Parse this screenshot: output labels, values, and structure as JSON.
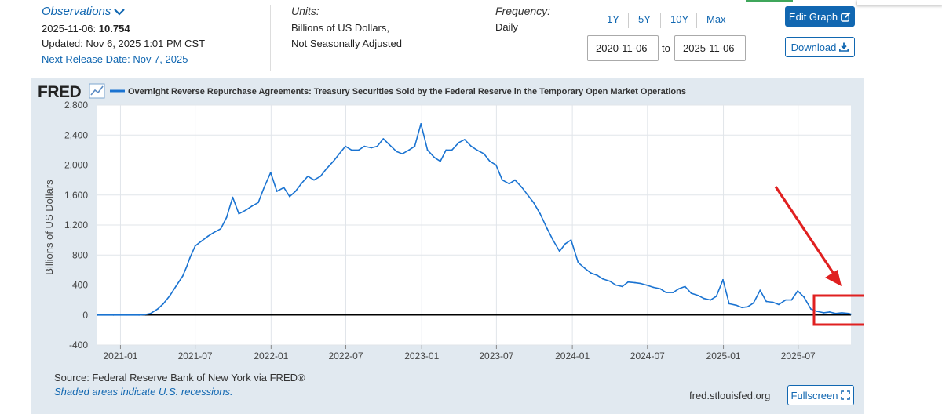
{
  "header": {
    "observations_label": "Observations",
    "obs_date": "2025-11-06:",
    "obs_value": "10.754",
    "updated": "Updated: Nov 6, 2025 1:01 PM CST",
    "next_release": "Next Release Date: Nov 7, 2025",
    "units_label": "Units:",
    "units_line1": "Billions of US Dollars,",
    "units_line2": "Not Seasonally Adjusted",
    "frequency_label": "Frequency:",
    "frequency_value": "Daily",
    "ranges": [
      "1Y",
      "5Y",
      "10Y",
      "Max"
    ],
    "start_date": "2020-11-06",
    "to_label": "to",
    "end_date": "2025-11-06",
    "edit_graph_label": "Edit Graph",
    "download_label": "Download"
  },
  "footer": {
    "source": "Source: Federal Reserve Bank of New York via FRED®",
    "recessions": "Shaded areas indicate U.S. recessions.",
    "site": "fred.stlouisfed.org",
    "fullscreen_label": "Fullscreen"
  },
  "colors": {
    "series": "#1a73d1",
    "link": "#1167b1",
    "panel": "#e1e9f0",
    "annotation": "#e02020"
  },
  "icons": {
    "observations": "chevron-down-icon",
    "edit": "pencil-square-icon",
    "download": "download-arrow-icon",
    "fullscreen": "expand-icon",
    "fred_logo_graph": "line-graph-icon"
  },
  "chart_data": {
    "type": "line",
    "brand": "FRED",
    "title": "Overnight Reverse Repurchase Agreements: Treasury Securities Sold by the Federal Reserve in the Temporary Open Market Operations",
    "legend_placement": "top-left",
    "ylabel": "Billions of US Dollars",
    "xlabel": "",
    "ylim": [
      -400,
      2800
    ],
    "yticks": [
      -400,
      0,
      400,
      800,
      1200,
      1600,
      2000,
      2400,
      2800
    ],
    "ytick_labels": [
      "-400",
      "0",
      "400",
      "800",
      "1,200",
      "1,600",
      "2,000",
      "2,400",
      "2,800"
    ],
    "xlim": [
      "2020-11-06",
      "2025-11-06"
    ],
    "xticks": [
      "2021-01",
      "2021-07",
      "2022-01",
      "2022-07",
      "2023-01",
      "2023-07",
      "2024-01",
      "2024-07",
      "2025-01",
      "2025-07"
    ],
    "grid": true,
    "series": [
      {
        "name": "Overnight Reverse Repurchase Agreements: Treasury Securities Sold by the Federal Reserve in the Temporary Open Market Operations",
        "x": [
          "2020-11-06",
          "2020-12-15",
          "2021-01-15",
          "2021-02-15",
          "2021-03-01",
          "2021-03-15",
          "2021-04-01",
          "2021-04-15",
          "2021-05-01",
          "2021-05-15",
          "2021-06-01",
          "2021-06-10",
          "2021-06-18",
          "2021-07-01",
          "2021-07-15",
          "2021-08-01",
          "2021-08-15",
          "2021-09-01",
          "2021-09-15",
          "2021-09-30",
          "2021-10-15",
          "2021-11-01",
          "2021-11-15",
          "2021-12-01",
          "2021-12-15",
          "2021-12-31",
          "2022-01-15",
          "2022-02-01",
          "2022-02-15",
          "2022-03-01",
          "2022-03-15",
          "2022-03-31",
          "2022-04-15",
          "2022-05-01",
          "2022-05-15",
          "2022-06-01",
          "2022-06-15",
          "2022-06-30",
          "2022-07-15",
          "2022-08-01",
          "2022-08-15",
          "2022-09-01",
          "2022-09-15",
          "2022-09-30",
          "2022-10-15",
          "2022-11-01",
          "2022-11-15",
          "2022-12-01",
          "2022-12-15",
          "2022-12-30",
          "2023-01-15",
          "2023-02-01",
          "2023-02-15",
          "2023-03-01",
          "2023-03-15",
          "2023-04-01",
          "2023-04-15",
          "2023-05-01",
          "2023-05-15",
          "2023-06-01",
          "2023-06-15",
          "2023-06-30",
          "2023-07-15",
          "2023-08-01",
          "2023-08-15",
          "2023-09-01",
          "2023-09-15",
          "2023-09-29",
          "2023-10-15",
          "2023-11-01",
          "2023-11-15",
          "2023-12-01",
          "2023-12-15",
          "2023-12-29",
          "2024-01-15",
          "2024-02-01",
          "2024-02-15",
          "2024-03-01",
          "2024-03-15",
          "2024-04-01",
          "2024-04-15",
          "2024-05-01",
          "2024-05-15",
          "2024-06-01",
          "2024-06-15",
          "2024-06-28",
          "2024-07-15",
          "2024-08-01",
          "2024-08-15",
          "2024-09-01",
          "2024-09-15",
          "2024-09-30",
          "2024-10-15",
          "2024-11-01",
          "2024-11-15",
          "2024-12-01",
          "2024-12-15",
          "2024-12-31",
          "2025-01-15",
          "2025-02-01",
          "2025-02-15",
          "2025-03-01",
          "2025-03-15",
          "2025-03-31",
          "2025-04-15",
          "2025-05-01",
          "2025-05-15",
          "2025-06-01",
          "2025-06-15",
          "2025-06-30",
          "2025-07-15",
          "2025-08-01",
          "2025-08-15",
          "2025-09-01",
          "2025-09-15",
          "2025-09-30",
          "2025-10-15",
          "2025-11-01",
          "2025-11-06"
        ],
        "values": [
          0,
          0,
          0,
          0,
          5,
          20,
          80,
          150,
          260,
          380,
          520,
          640,
          760,
          920,
          980,
          1050,
          1100,
          1150,
          1300,
          1570,
          1350,
          1400,
          1450,
          1500,
          1700,
          1900,
          1650,
          1700,
          1580,
          1650,
          1750,
          1850,
          1800,
          1850,
          1950,
          2050,
          2150,
          2250,
          2200,
          2200,
          2250,
          2230,
          2250,
          2350,
          2270,
          2180,
          2150,
          2200,
          2250,
          2550,
          2200,
          2100,
          2050,
          2200,
          2200,
          2300,
          2340,
          2250,
          2200,
          2150,
          2050,
          2000,
          1800,
          1750,
          1800,
          1700,
          1600,
          1500,
          1350,
          1150,
          1000,
          850,
          950,
          1000,
          700,
          620,
          560,
          530,
          480,
          450,
          400,
          380,
          440,
          430,
          420,
          400,
          370,
          350,
          300,
          300,
          350,
          380,
          290,
          260,
          220,
          200,
          250,
          470,
          150,
          130,
          100,
          110,
          160,
          330,
          180,
          170,
          140,
          200,
          200,
          320,
          240,
          80,
          50,
          30,
          40,
          20,
          30,
          20,
          10.754
        ]
      }
    ],
    "annotations": [
      {
        "type": "arrow",
        "color": "red",
        "points_to": "latest values"
      },
      {
        "type": "box",
        "color": "red",
        "highlights": "2025-08 to 2025-11 values near 0"
      }
    ]
  }
}
